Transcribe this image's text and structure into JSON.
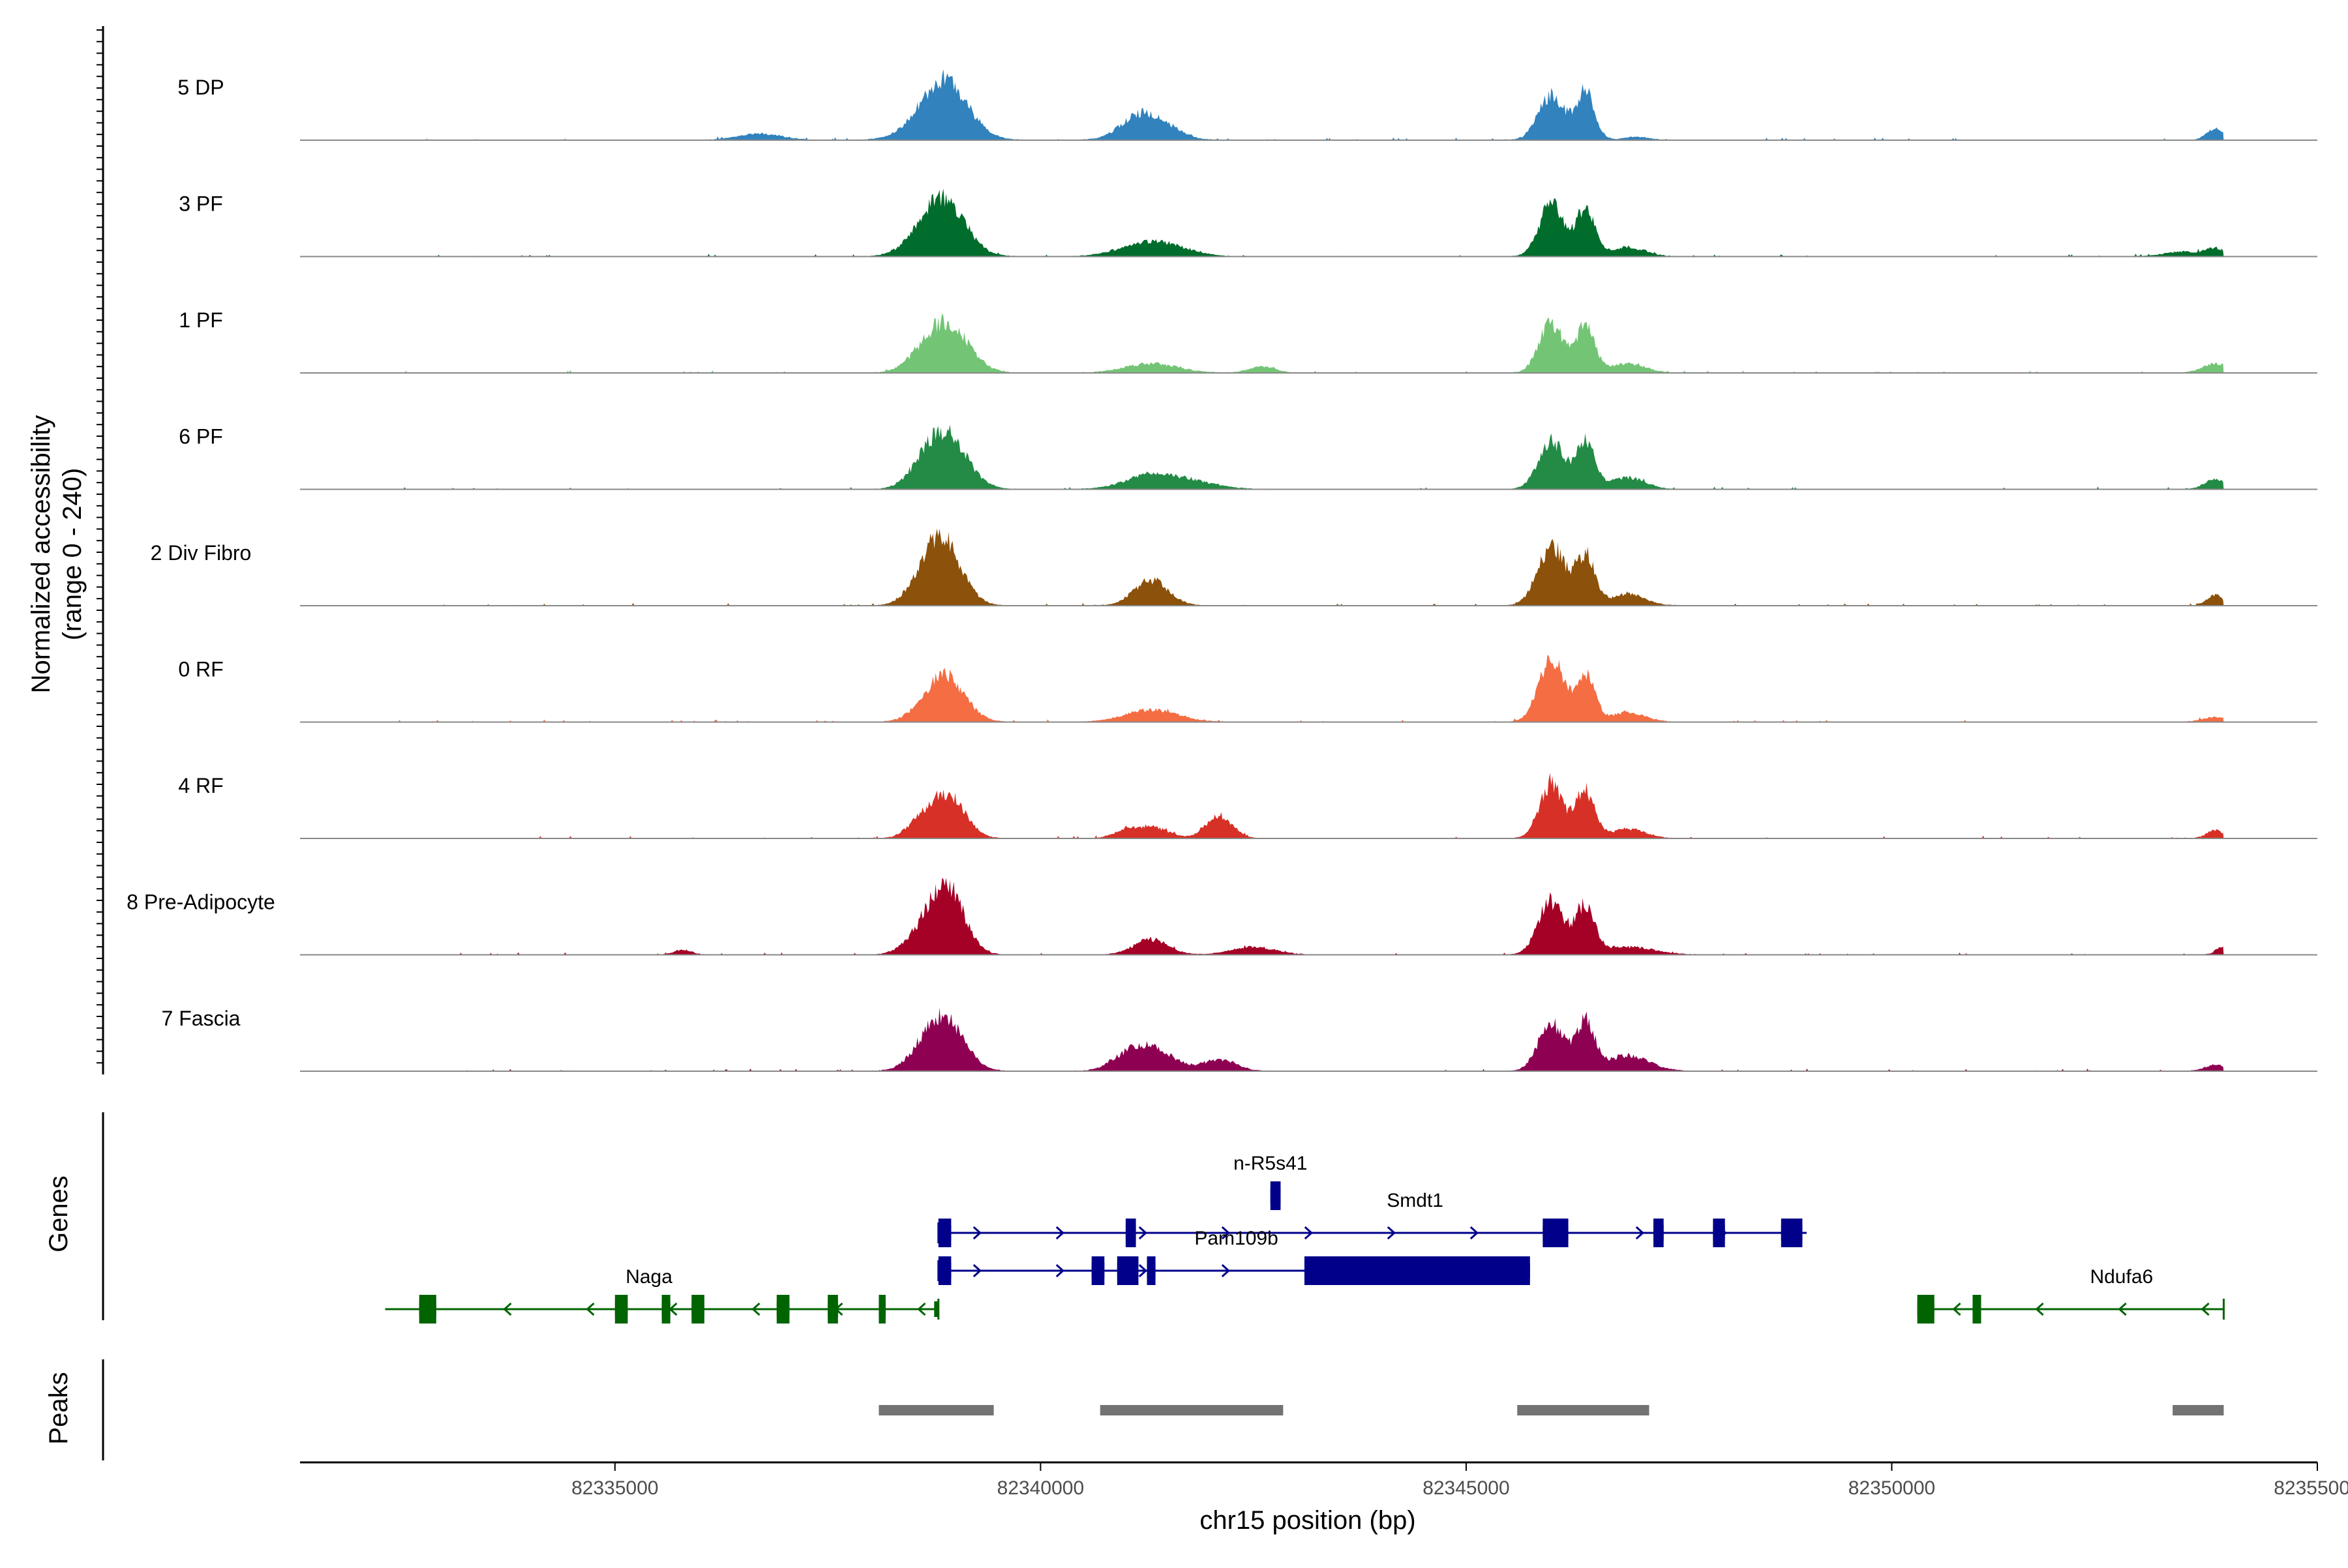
{
  "chart_data": {
    "type": "area",
    "title": "",
    "xlabel": "chr15 position (bp)",
    "ylabel": "Normalized accessibility",
    "ylabel_range": "(range 0 - 240)",
    "xlim": [
      82331300,
      82355000
    ],
    "ylim": [
      0,
      240
    ],
    "x_ticks": [
      82335000,
      82340000,
      82345000,
      82350000,
      82355000
    ],
    "x_tick_labels": [
      "82335000",
      "82340000",
      "82345000",
      "82350000",
      "82355000"
    ],
    "coverage_start": 82332300,
    "coverage_end": 82353900,
    "series": [
      {
        "name": "5 DP",
        "color": "#3182bd",
        "peaks": [
          [
            82338900,
            0.55,
            260
          ],
          [
            82338750,
            0.25,
            300
          ],
          [
            82341300,
            0.3,
            250
          ],
          [
            82341050,
            0.1,
            200
          ],
          [
            82336700,
            0.08,
            250
          ],
          [
            82346000,
            0.58,
            150
          ],
          [
            82346400,
            0.62,
            110
          ],
          [
            82347000,
            0.04,
            150
          ],
          [
            82353800,
            0.14,
            100
          ]
        ]
      },
      {
        "name": "3 PF",
        "color": "#006d2c",
        "peaks": [
          [
            82338900,
            0.55,
            240
          ],
          [
            82338700,
            0.28,
            250
          ],
          [
            82341200,
            0.16,
            300
          ],
          [
            82341600,
            0.08,
            250
          ],
          [
            82346000,
            0.68,
            140
          ],
          [
            82346400,
            0.62,
            110
          ],
          [
            82346900,
            0.12,
            200
          ],
          [
            82353400,
            0.06,
            200
          ],
          [
            82353800,
            0.1,
            120
          ]
        ]
      },
      {
        "name": "1 PF",
        "color": "#74c476",
        "peaks": [
          [
            82338900,
            0.62,
            250
          ],
          [
            82338600,
            0.1,
            200
          ],
          [
            82341300,
            0.12,
            300
          ],
          [
            82342600,
            0.08,
            150
          ],
          [
            82346000,
            0.65,
            140
          ],
          [
            82346400,
            0.6,
            110
          ],
          [
            82346900,
            0.12,
            200
          ],
          [
            82353800,
            0.12,
            150
          ]
        ]
      },
      {
        "name": "6 PF",
        "color": "#238b45",
        "peaks": [
          [
            82338900,
            0.65,
            240
          ],
          [
            82338650,
            0.18,
            200
          ],
          [
            82341300,
            0.18,
            300
          ],
          [
            82341800,
            0.08,
            300
          ],
          [
            82346000,
            0.62,
            150
          ],
          [
            82346400,
            0.62,
            110
          ],
          [
            82346900,
            0.15,
            200
          ],
          [
            82353800,
            0.13,
            120
          ]
        ]
      },
      {
        "name": "2 Div Fibro",
        "color": "#8c510a",
        "peaks": [
          [
            82338850,
            0.78,
            220
          ],
          [
            82338650,
            0.2,
            200
          ],
          [
            82341300,
            0.33,
            200
          ],
          [
            82346000,
            0.78,
            160
          ],
          [
            82346400,
            0.65,
            110
          ],
          [
            82346900,
            0.15,
            200
          ],
          [
            82353800,
            0.13,
            100
          ]
        ]
      },
      {
        "name": "0 RF",
        "color": "#f46d43",
        "peaks": [
          [
            82338900,
            0.55,
            220
          ],
          [
            82338650,
            0.1,
            200
          ],
          [
            82341300,
            0.16,
            300
          ],
          [
            82346000,
            0.82,
            150
          ],
          [
            82346400,
            0.6,
            110
          ],
          [
            82346900,
            0.12,
            200
          ],
          [
            82353800,
            0.06,
            150
          ]
        ]
      },
      {
        "name": "4 RF",
        "color": "#d73027",
        "peaks": [
          [
            82338900,
            0.58,
            200
          ],
          [
            82338550,
            0.15,
            150
          ],
          [
            82341300,
            0.14,
            200
          ],
          [
            82341000,
            0.08,
            150
          ],
          [
            82342100,
            0.3,
            150
          ],
          [
            82346000,
            0.7,
            140
          ],
          [
            82346400,
            0.62,
            110
          ],
          [
            82346900,
            0.12,
            200
          ],
          [
            82353800,
            0.1,
            100
          ]
        ]
      },
      {
        "name": "8 Pre-Adipocyte",
        "color": "#a50026",
        "peaks": [
          [
            82338900,
            0.85,
            200
          ],
          [
            82338600,
            0.22,
            200
          ],
          [
            82341300,
            0.2,
            200
          ],
          [
            82342500,
            0.1,
            250
          ],
          [
            82346000,
            0.7,
            150
          ],
          [
            82346400,
            0.62,
            110
          ],
          [
            82346900,
            0.1,
            300
          ],
          [
            82335800,
            0.06,
            100
          ],
          [
            82353900,
            0.12,
            80
          ]
        ]
      },
      {
        "name": "7 Fascia",
        "color": "#8e0152",
        "peaks": [
          [
            82338900,
            0.6,
            220
          ],
          [
            82338650,
            0.22,
            200
          ],
          [
            82341300,
            0.3,
            250
          ],
          [
            82341000,
            0.12,
            200
          ],
          [
            82342100,
            0.14,
            200
          ],
          [
            82346000,
            0.62,
            150
          ],
          [
            82346400,
            0.62,
            110
          ],
          [
            82346900,
            0.2,
            250
          ],
          [
            82353800,
            0.08,
            120
          ]
        ]
      }
    ],
    "genes_track_label": "Genes",
    "peaks_track_label": "Peaks",
    "genes": [
      {
        "name": "n-R5s41",
        "strand": "+",
        "color": "#00008b",
        "row": 0,
        "start": 82342700,
        "end": 82342820,
        "exons": [
          [
            82342700,
            82342820
          ]
        ],
        "cds": [
          [
            82342700,
            82342820
          ]
        ],
        "label_x": 82342700
      },
      {
        "name": "Smdt1",
        "strand": "+",
        "color": "#00008b",
        "row": 1,
        "start": 82338800,
        "end": 82349000,
        "exons": [
          [
            82338800,
            82338950
          ],
          [
            82341000,
            82341120
          ],
          [
            82345900,
            82346200
          ],
          [
            82347200,
            82347320
          ],
          [
            82347900,
            82348040
          ],
          [
            82348700,
            82348950
          ]
        ],
        "cds": [
          [
            82338800,
            82338950
          ],
          [
            82341000,
            82341120
          ],
          [
            82345900,
            82346200
          ],
          [
            82347200,
            82347320
          ],
          [
            82347900,
            82348040
          ],
          [
            82348700,
            82348950
          ]
        ],
        "label_x": 82344400
      },
      {
        "name": "Pam109b",
        "strand": "+",
        "color": "#00008b",
        "row": 2,
        "start": 82338800,
        "end": 82345750,
        "exons": [
          [
            82338800,
            82338950
          ],
          [
            82340600,
            82340750
          ],
          [
            82340900,
            82341150
          ],
          [
            82341250,
            82341350
          ],
          [
            82343100,
            82345750
          ]
        ],
        "cds": [
          [
            82338800,
            82338950
          ],
          [
            82340600,
            82340750
          ],
          [
            82340900,
            82341150
          ],
          [
            82341250,
            82341350
          ],
          [
            82343100,
            82345750
          ]
        ],
        "label_x": 82342300
      },
      {
        "name": "Naga",
        "strand": "-",
        "color": "#006400",
        "row": 3,
        "start": 82332300,
        "end": 82338800,
        "exons": [
          [
            82332700,
            82332900
          ],
          [
            82335000,
            82335150
          ],
          [
            82335550,
            82335650
          ],
          [
            82335900,
            82336050
          ],
          [
            82336900,
            82337050
          ],
          [
            82337500,
            82337620
          ],
          [
            82338100,
            82338180
          ],
          [
            82338750,
            82338800
          ]
        ],
        "cds": [
          [
            82332700,
            82332900
          ],
          [
            82335000,
            82335150
          ],
          [
            82335550,
            82335650
          ],
          [
            82335900,
            82336050
          ],
          [
            82336900,
            82337050
          ],
          [
            82337500,
            82337620
          ],
          [
            82338100,
            82338180
          ]
        ],
        "label_x": 82335400
      },
      {
        "name": "Ndufa6",
        "strand": "-",
        "color": "#006400",
        "row": 3,
        "start": 82350300,
        "end": 82353900,
        "exons": [
          [
            82350300,
            82350500
          ],
          [
            82350950,
            82351050
          ]
        ],
        "cds": [
          [
            82350300,
            82350500
          ],
          [
            82350950,
            82351050
          ]
        ],
        "label_x": 82352700
      }
    ],
    "peak_regions": [
      [
        82338100,
        82339450
      ],
      [
        82340700,
        82342850
      ],
      [
        82345600,
        82347150
      ],
      [
        82353300,
        82353900
      ]
    ]
  }
}
